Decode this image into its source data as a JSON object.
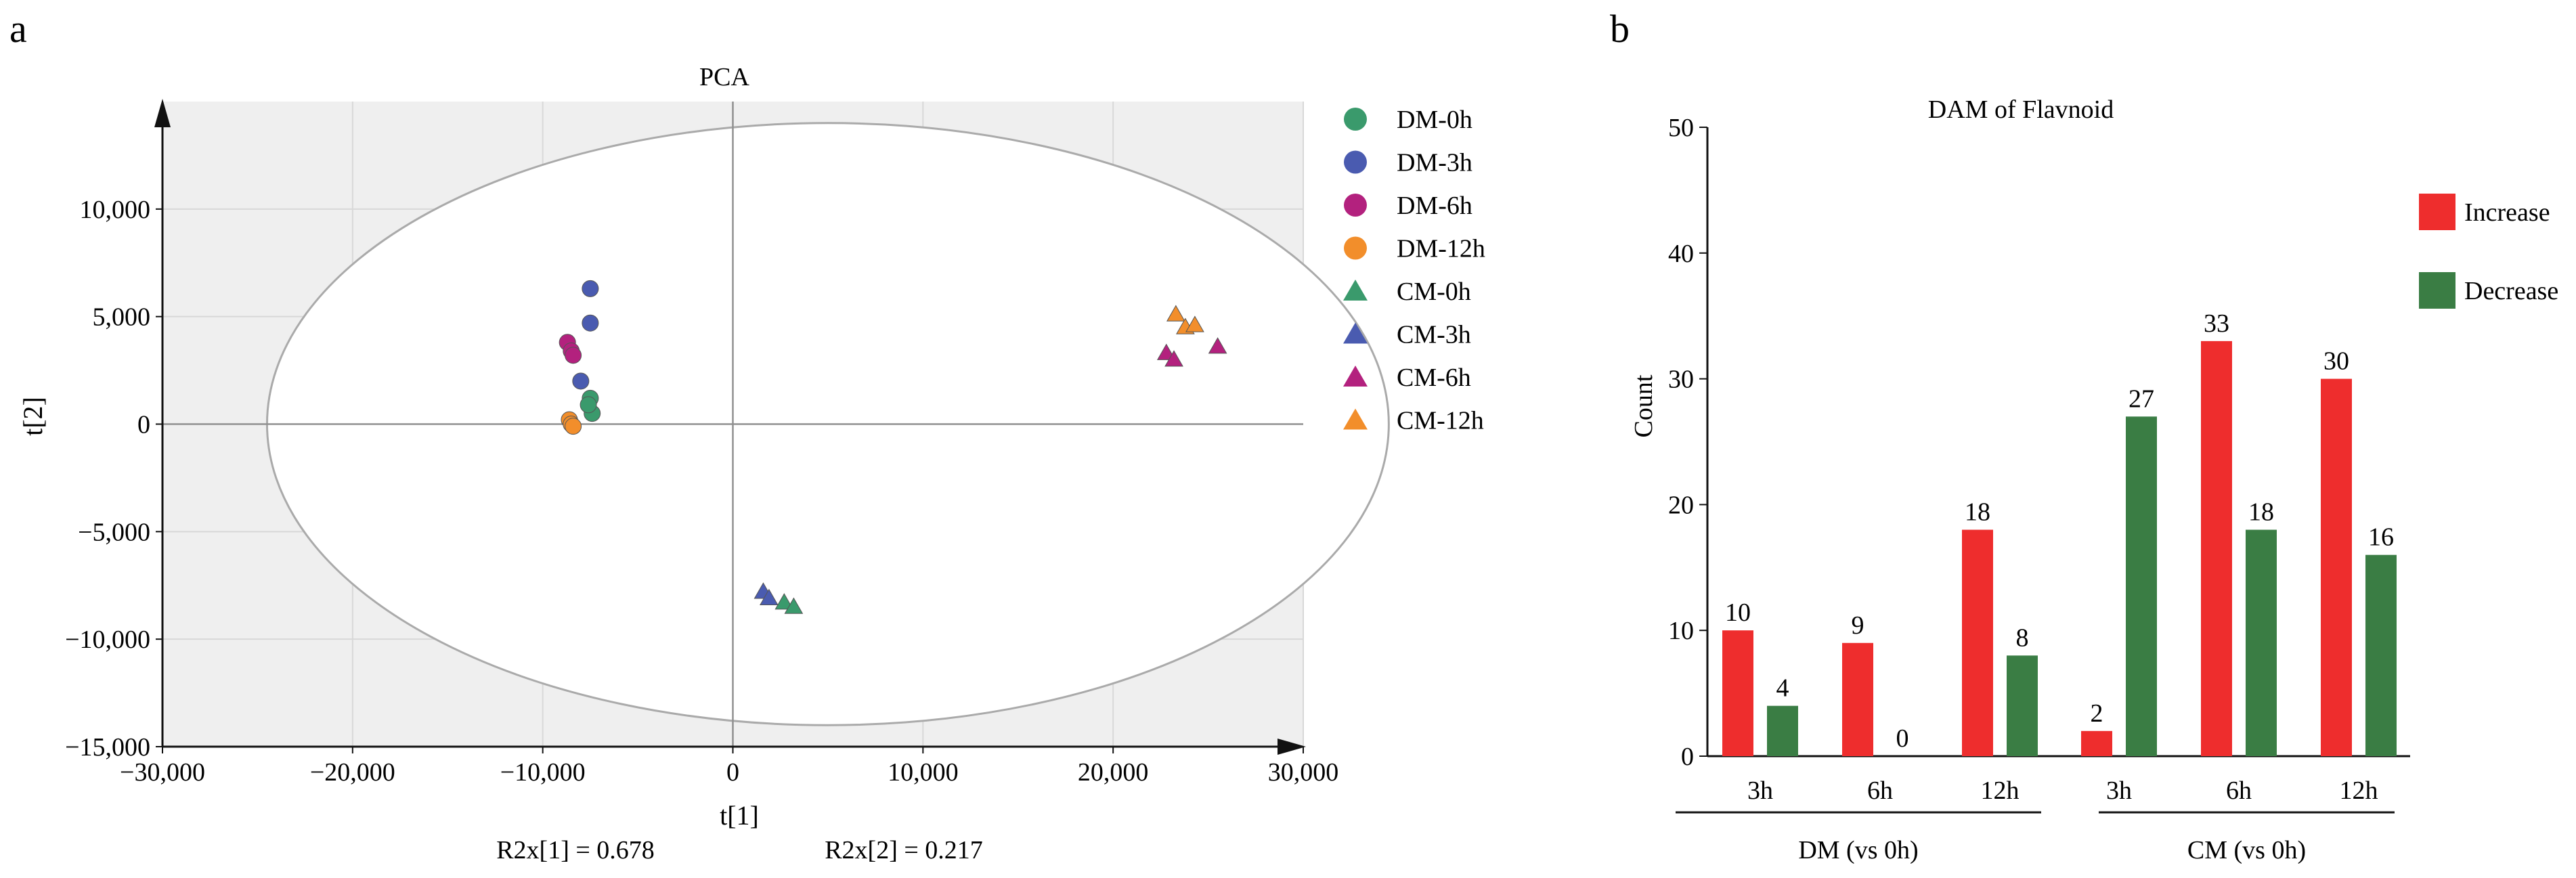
{
  "colors": {
    "dm0": "#3a9a6c",
    "dm3": "#4a5bb0",
    "dm6": "#b3217e",
    "dm12": "#f28e2b",
    "cm0": "#3a9a6c",
    "cm3": "#4a5bb0",
    "cm6": "#b3217e",
    "cm12": "#f28e2b",
    "increase": "#ee2d2d",
    "decrease": "#3a7d44",
    "plot_bg": "#efefef",
    "grid": "#d8d8d8"
  },
  "panels": {
    "a": "a",
    "b": "b"
  },
  "chart_data": [
    {
      "type": "scatter",
      "title": "PCA",
      "xlabel": "t[1]",
      "ylabel": "t[2]",
      "xlim": [
        -30000,
        30000
      ],
      "ylim": [
        -15000,
        15000
      ],
      "xticks": [
        -30000,
        -20000,
        -10000,
        0,
        10000,
        20000,
        30000
      ],
      "xtick_labels": [
        "−30,000",
        "−20,000",
        "−10,000",
        "0",
        "10,000",
        "20,000",
        "30,000"
      ],
      "yticks": [
        -15000,
        -10000,
        -5000,
        0,
        5000,
        10000
      ],
      "ytick_labels": [
        "−15,000",
        "−10,000",
        "−5,000",
        "0",
        "5,000",
        "10,000"
      ],
      "ellipse": {
        "center": [
          5000,
          0
        ],
        "rx": 29500,
        "ry": 14000
      },
      "annotations": [
        "R2x[1] = 0.678",
        "R2x[2] = 0.217"
      ],
      "legend_position": "right",
      "series": [
        {
          "name": "DM-0h",
          "marker": "circle",
          "color_key": "dm0",
          "points": [
            [
              -7500,
              1200
            ],
            [
              -7400,
              500
            ],
            [
              -7600,
              900
            ]
          ]
        },
        {
          "name": "DM-3h",
          "marker": "circle",
          "color_key": "dm3",
          "points": [
            [
              -7500,
              6300
            ],
            [
              -7500,
              4700
            ],
            [
              -8000,
              2000
            ]
          ]
        },
        {
          "name": "DM-6h",
          "marker": "circle",
          "color_key": "dm6",
          "points": [
            [
              -8700,
              3800
            ],
            [
              -8500,
              3400
            ],
            [
              -8400,
              3200
            ]
          ]
        },
        {
          "name": "DM-12h",
          "marker": "circle",
          "color_key": "dm12",
          "points": [
            [
              -8600,
              200
            ],
            [
              -8500,
              0
            ],
            [
              -8400,
              -100
            ]
          ]
        },
        {
          "name": "CM-0h",
          "marker": "triangle",
          "color_key": "cm0",
          "points": [
            [
              2700,
              -8300
            ],
            [
              3200,
              -8500
            ]
          ]
        },
        {
          "name": "CM-3h",
          "marker": "triangle",
          "color_key": "cm3",
          "points": [
            [
              1600,
              -7800
            ],
            [
              1900,
              -8100
            ]
          ]
        },
        {
          "name": "CM-6h",
          "marker": "triangle",
          "color_key": "cm6",
          "points": [
            [
              22800,
              3300
            ],
            [
              23200,
              3000
            ],
            [
              25500,
              3600
            ]
          ]
        },
        {
          "name": "CM-12h",
          "marker": "triangle",
          "color_key": "cm12",
          "points": [
            [
              23300,
              5100
            ],
            [
              23800,
              4500
            ],
            [
              24300,
              4600
            ]
          ]
        }
      ]
    },
    {
      "type": "bar",
      "title": "DAM of Flavnoid",
      "ylabel": "Count",
      "ylim": [
        0,
        50
      ],
      "yticks": [
        0,
        10,
        20,
        30,
        40,
        50
      ],
      "categories": [
        "3h",
        "6h",
        "12h",
        "3h",
        "6h",
        "12h"
      ],
      "groups": [
        {
          "label": "DM (vs 0h)",
          "categories": [
            "3h",
            "6h",
            "12h"
          ]
        },
        {
          "label": "CM (vs 0h)",
          "categories": [
            "3h",
            "6h",
            "12h"
          ]
        }
      ],
      "legend_position": "right",
      "series": [
        {
          "name": "Increase",
          "color_key": "increase",
          "values": [
            10,
            9,
            18,
            2,
            33,
            30
          ]
        },
        {
          "name": "Decrease",
          "color_key": "decrease",
          "values": [
            4,
            0,
            8,
            27,
            18,
            16
          ]
        }
      ]
    }
  ]
}
